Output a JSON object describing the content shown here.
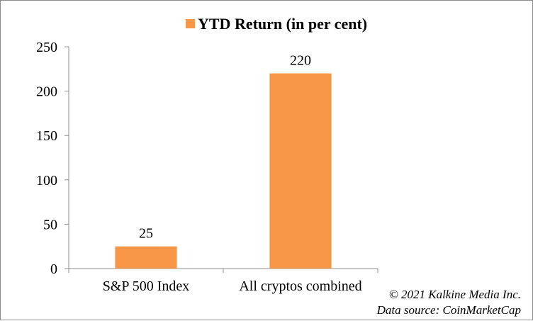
{
  "chart_data": {
    "type": "bar",
    "categories": [
      "S&P 500 Index",
      "All cryptos combined"
    ],
    "series": [
      {
        "name": "YTD Return (in per cent)",
        "values": [
          25,
          220
        ],
        "color": "#F79646"
      }
    ],
    "ylim": [
      0,
      250
    ],
    "yticks": [
      0,
      50,
      100,
      150,
      200,
      250
    ],
    "data_labels": true,
    "legend_position": "top",
    "grid": false
  },
  "credits": {
    "copyright": "© 2021 Kalkine Media Inc.",
    "source": "Data source: CoinMarketCap"
  }
}
